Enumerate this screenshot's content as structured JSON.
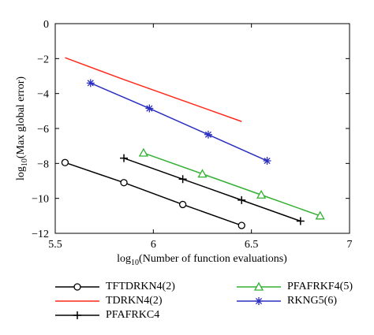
{
  "chart_data": {
    "type": "line",
    "title": "",
    "xlabel": "log10(Number of function evaluations)",
    "ylabel": "log10(Max global error)",
    "xlim": [
      5.5,
      7
    ],
    "ylim": [
      -12,
      0
    ],
    "xticks": [
      5.5,
      6,
      6.5,
      7
    ],
    "xtick_labels": [
      "5.5",
      "6",
      "6.5",
      "7"
    ],
    "yticks": [
      0,
      -2,
      -4,
      -6,
      -8,
      -10,
      -12
    ],
    "ytick_labels": [
      "0",
      "−2",
      "−4",
      "−6",
      "−8",
      "−10",
      "−12"
    ],
    "grid": false,
    "legend_position": "below",
    "series": [
      {
        "name": "TFTDRKN4(2)",
        "color": "#000000",
        "marker": "circle",
        "x": [
          5.55,
          5.85,
          6.15,
          6.45
        ],
        "y": [
          -7.95,
          -9.1,
          -10.35,
          -11.55
        ]
      },
      {
        "name": "TDRKN4(2)",
        "color": "#ff2a1a",
        "marker": "none",
        "x": [
          5.55,
          5.85,
          6.15,
          6.45
        ],
        "y": [
          -1.95,
          -3.2,
          -4.4,
          -5.6
        ]
      },
      {
        "name": "PFAFRKC4",
        "color": "#000000",
        "marker": "plus",
        "x": [
          5.85,
          6.15,
          6.45,
          6.75
        ],
        "y": [
          -7.7,
          -8.9,
          -10.1,
          -11.3
        ]
      },
      {
        "name": "PFAFRKF4(5)",
        "color": "#33b033",
        "marker": "triangle",
        "x": [
          5.95,
          6.25,
          6.55,
          6.85
        ],
        "y": [
          -7.4,
          -8.6,
          -9.8,
          -11.0
        ]
      },
      {
        "name": "RKNG5(6)",
        "color": "#2b2fbf",
        "marker": "star",
        "x": [
          5.68,
          5.98,
          6.28,
          6.58
        ],
        "y": [
          -3.4,
          -4.85,
          -6.35,
          -7.85
        ]
      }
    ]
  }
}
